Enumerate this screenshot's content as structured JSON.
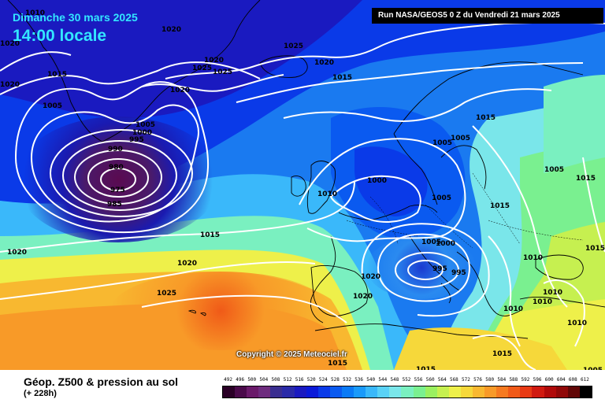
{
  "header": {
    "date": "Dimanche 30 mars 2025",
    "time": "14:00 locale",
    "run": "Run NASA/GEOS5 0 Z du Vendredi 21 mars 2025"
  },
  "copyright": "Copyright © 2025 Meteociel.fr",
  "footer": {
    "title": "Géop. Z500 & pression au sol",
    "subtitle": "(+ 228h)"
  },
  "legend": {
    "labels": [
      "492",
      "496",
      "500",
      "504",
      "508",
      "512",
      "516",
      "520",
      "524",
      "528",
      "532",
      "536",
      "540",
      "544",
      "548",
      "552",
      "556",
      "560",
      "564",
      "568",
      "572",
      "576",
      "580",
      "584",
      "588",
      "592",
      "596",
      "600",
      "604",
      "608",
      "612"
    ],
    "colors": [
      "#2a0026",
      "#4a0a4a",
      "#6a1a6a",
      "#6e2c7e",
      "#3a2e90",
      "#2a2aa8",
      "#1a1ac0",
      "#0a1ad8",
      "#0a3ae8",
      "#0a5af0",
      "#0a7af6",
      "#1a9afa",
      "#3ab8fa",
      "#5ad2f6",
      "#7ae6ea",
      "#7af0c0",
      "#7af090",
      "#9af060",
      "#c6f050",
      "#eef04a",
      "#f6d83a",
      "#f8b830",
      "#f89a28",
      "#f67a20",
      "#f05a18",
      "#e83a14",
      "#d01a10",
      "#b00a0a",
      "#900808",
      "#600606",
      "#000000"
    ]
  },
  "isobars": [
    {
      "value": "1010",
      "tag": "a"
    },
    {
      "value": "1020",
      "tag": "b"
    },
    {
      "value": "1020",
      "tag": "c"
    },
    {
      "value": "1015",
      "tag": "d"
    },
    {
      "value": "1005",
      "tag": "e"
    },
    {
      "value": "1020",
      "tag": "f"
    },
    {
      "value": "1025",
      "tag": "g"
    },
    {
      "value": "1025",
      "tag": "h"
    },
    {
      "value": "1020",
      "tag": "i"
    },
    {
      "value": "1025",
      "tag": "j"
    },
    {
      "value": "1020",
      "tag": "k"
    },
    {
      "value": "1015",
      "tag": "l"
    },
    {
      "value": "1020",
      "tag": "m"
    },
    {
      "value": "1005",
      "tag": "n"
    },
    {
      "value": "1000",
      "tag": "o"
    },
    {
      "value": "995",
      "tag": "p"
    },
    {
      "value": "990",
      "tag": "q"
    },
    {
      "value": "980",
      "tag": "r"
    },
    {
      "value": "975",
      "tag": "s"
    },
    {
      "value": "985",
      "tag": "t"
    },
    {
      "value": "1010",
      "tag": "u"
    },
    {
      "value": "1000",
      "tag": "v"
    },
    {
      "value": "1005",
      "tag": "w"
    },
    {
      "value": "1005",
      "tag": "x"
    },
    {
      "value": "1005",
      "tag": "y"
    },
    {
      "value": "1015",
      "tag": "z"
    },
    {
      "value": "1015",
      "tag": "aa"
    },
    {
      "value": "1020",
      "tag": "ab"
    },
    {
      "value": "1020",
      "tag": "ac"
    },
    {
      "value": "1025",
      "tag": "ad"
    },
    {
      "value": "1020",
      "tag": "ae"
    },
    {
      "value": "1020",
      "tag": "af"
    },
    {
      "value": "1005",
      "tag": "ag"
    },
    {
      "value": "1000",
      "tag": "ah"
    },
    {
      "value": "995",
      "tag": "ai"
    },
    {
      "value": "995",
      "tag": "aj"
    },
    {
      "value": "1010",
      "tag": "ak"
    },
    {
      "value": "1010",
      "tag": "al"
    },
    {
      "value": "1010",
      "tag": "am"
    },
    {
      "value": "1010",
      "tag": "an"
    },
    {
      "value": "1015",
      "tag": "ao"
    },
    {
      "value": "1015",
      "tag": "ap"
    },
    {
      "value": "1015",
      "tag": "aq"
    },
    {
      "value": "1005",
      "tag": "ar"
    },
    {
      "value": "1015",
      "tag": "as"
    },
    {
      "value": "1015",
      "tag": "at"
    },
    {
      "value": "1005",
      "tag": "au"
    },
    {
      "value": "1010",
      "tag": "av"
    },
    {
      "value": "1015",
      "tag": "aw"
    }
  ]
}
